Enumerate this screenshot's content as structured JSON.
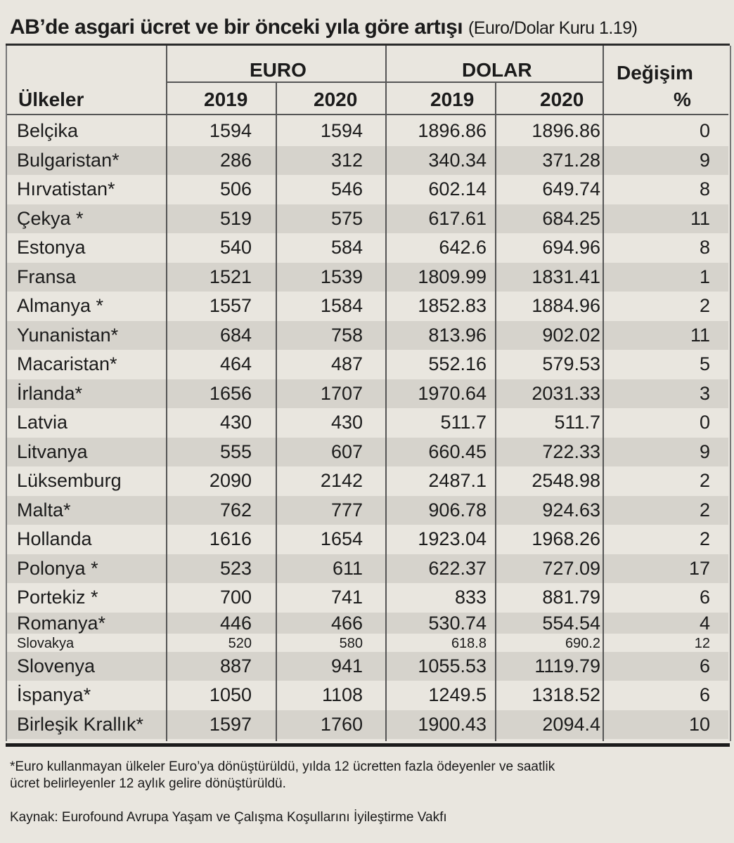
{
  "title": {
    "main": "AB’de asgari ücret ve bir önceki yıla göre artışı",
    "note": "(Euro/Dolar Kuru 1.19)"
  },
  "table": {
    "groups": {
      "euro": "EURO",
      "dolar": "DOLAR"
    },
    "headers": {
      "country": "Ülkeler",
      "euro2019": "2019",
      "euro2020": "2020",
      "dolar2019": "2019",
      "dolar2020": "2020",
      "change": "Değişim",
      "percent": "%"
    },
    "rows": [
      {
        "country": "Belçika",
        "euro2019": "1594",
        "euro2020": "1594",
        "dolar2019": "1896.86",
        "dolar2020": "1896.86",
        "change": "0"
      },
      {
        "country": "Bulgaristan*",
        "euro2019": "286",
        "euro2020": "312",
        "dolar2019": "340.34",
        "dolar2020": "371.28",
        "change": "9"
      },
      {
        "country": "Hırvatistan*",
        "euro2019": "506",
        "euro2020": "546",
        "dolar2019": "602.14",
        "dolar2020": "649.74",
        "change": "8"
      },
      {
        "country": "Çekya *",
        "euro2019": "519",
        "euro2020": "575",
        "dolar2019": "617.61",
        "dolar2020": "684.25",
        "change": "11"
      },
      {
        "country": "Estonya",
        "euro2019": "540",
        "euro2020": "584",
        "dolar2019": "642.6",
        "dolar2020": "694.96",
        "change": "8"
      },
      {
        "country": "Fransa",
        "euro2019": "1521",
        "euro2020": "1539",
        "dolar2019": "1809.99",
        "dolar2020": "1831.41",
        "change": "1"
      },
      {
        "country": "Almanya *",
        "euro2019": "1557",
        "euro2020": "1584",
        "dolar2019": "1852.83",
        "dolar2020": "1884.96",
        "change": "2"
      },
      {
        "country": "Yunanistan*",
        "euro2019": "684",
        "euro2020": "758",
        "dolar2019": "813.96",
        "dolar2020": "902.02",
        "change": "11"
      },
      {
        "country": "Macaristan*",
        "euro2019": "464",
        "euro2020": "487",
        "dolar2019": "552.16",
        "dolar2020": "579.53",
        "change": "5"
      },
      {
        "country": "İrlanda*",
        "euro2019": "1656",
        "euro2020": "1707",
        "dolar2019": "1970.64",
        "dolar2020": "2031.33",
        "change": "3"
      },
      {
        "country": "Latvia",
        "euro2019": "430",
        "euro2020": "430",
        "dolar2019": "511.7",
        "dolar2020": "511.7",
        "change": "0"
      },
      {
        "country": "Litvanya",
        "euro2019": "555",
        "euro2020": "607",
        "dolar2019": "660.45",
        "dolar2020": "722.33",
        "change": "9"
      },
      {
        "country": "Lüksemburg",
        "euro2019": "2090",
        "euro2020": "2142",
        "dolar2019": "2487.1",
        "dolar2020": "2548.98",
        "change": "2"
      },
      {
        "country": "Malta*",
        "euro2019": "762",
        "euro2020": "777",
        "dolar2019": "906.78",
        "dolar2020": "924.63",
        "change": "2"
      },
      {
        "country": "Hollanda",
        "euro2019": "1616",
        "euro2020": "1654",
        "dolar2019": "1923.04",
        "dolar2020": "1968.26",
        "change": "2"
      },
      {
        "country": "Polonya *",
        "euro2019": "523",
        "euro2020": "611",
        "dolar2019": "622.37",
        "dolar2020": "727.09",
        "change": "17"
      },
      {
        "country": "Portekiz *",
        "euro2019": "700",
        "euro2020": "741",
        "dolar2019": "833",
        "dolar2020": "881.79",
        "change": "6"
      },
      {
        "country": "Romanya*",
        "euro2019": "446",
        "euro2020": "466",
        "dolar2019": "530.74",
        "dolar2020": "554.54",
        "change": "4"
      },
      {
        "country": "Slovakya",
        "euro2019": "520",
        "euro2020": "580",
        "dolar2019": "618.8",
        "dolar2020": "690.2",
        "change": "12"
      },
      {
        "country": "Slovenya",
        "euro2019": "887",
        "euro2020": "941",
        "dolar2019": "1055.53",
        "dolar2020": "1119.79",
        "change": "6"
      },
      {
        "country": "İspanya*",
        "euro2019": "1050",
        "euro2020": "1108",
        "dolar2019": "1249.5",
        "dolar2020": "1318.52",
        "change": "6"
      },
      {
        "country": "Birleşik Krallık*",
        "euro2019": "1597",
        "euro2020": "1760",
        "dolar2019": "1900.43",
        "dolar2020": "2094.4",
        "change": "10"
      }
    ]
  },
  "footnote": {
    "line1": "*Euro kullanmayan ülkeler Euro’ya dönüştürüldü, yılda 12 ücretten fazla ödeyenler ve saatlik",
    "line2": "ücret belirleyenler 12 aylık gelire dönüştürüldü.",
    "line3": "",
    "source": "Kaynak: Eurofound Avrupa Yaşam ve Çalışma Koşullarını İyileştirme Vakfı"
  }
}
